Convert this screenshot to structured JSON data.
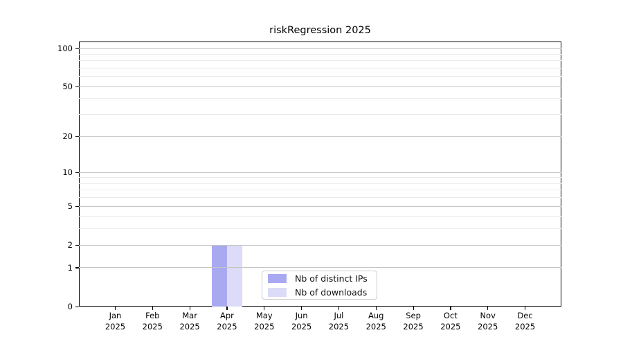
{
  "chart_data": {
    "type": "bar",
    "title": "riskRegression 2025",
    "categories": [
      "Jan",
      "Feb",
      "Mar",
      "Apr",
      "May",
      "Jun",
      "Jul",
      "Aug",
      "Sep",
      "Oct",
      "Nov",
      "Dec"
    ],
    "category_year": "2025",
    "series": [
      {
        "name": "Nb of distinct IPs",
        "color": "#a9a9f2",
        "values": [
          0,
          0,
          0,
          2,
          0,
          0,
          0,
          0,
          0,
          0,
          0,
          0
        ]
      },
      {
        "name": "Nb of downloads",
        "color": "#dcdcf8",
        "values": [
          0,
          0,
          0,
          2,
          0,
          0,
          0,
          0,
          0,
          0,
          0,
          0
        ]
      }
    ],
    "xlabel": "",
    "ylabel": "",
    "yscale": "log1p",
    "ylim": [
      0,
      113.5
    ],
    "ytick_values": [
      0,
      1,
      2,
      5,
      10,
      20,
      50,
      100
    ],
    "ytick_labels": [
      "0",
      "1",
      "2",
      "5",
      "10",
      "20",
      "50",
      "100"
    ],
    "minor_gridline_values": [
      3,
      4,
      6,
      7,
      8,
      9,
      30,
      40,
      60,
      70,
      80,
      90
    ],
    "grid": true,
    "legend_position": "lower center"
  },
  "colors": {
    "background": "#ffffff",
    "bar_distinct_ips": "#a9a9f2",
    "bar_downloads": "#dcdcf8",
    "major_grid": "#c4c4c4",
    "minor_grid": "#ebebeb",
    "axis": "#000000",
    "text": "#000000",
    "legend_border": "#cccccc"
  }
}
